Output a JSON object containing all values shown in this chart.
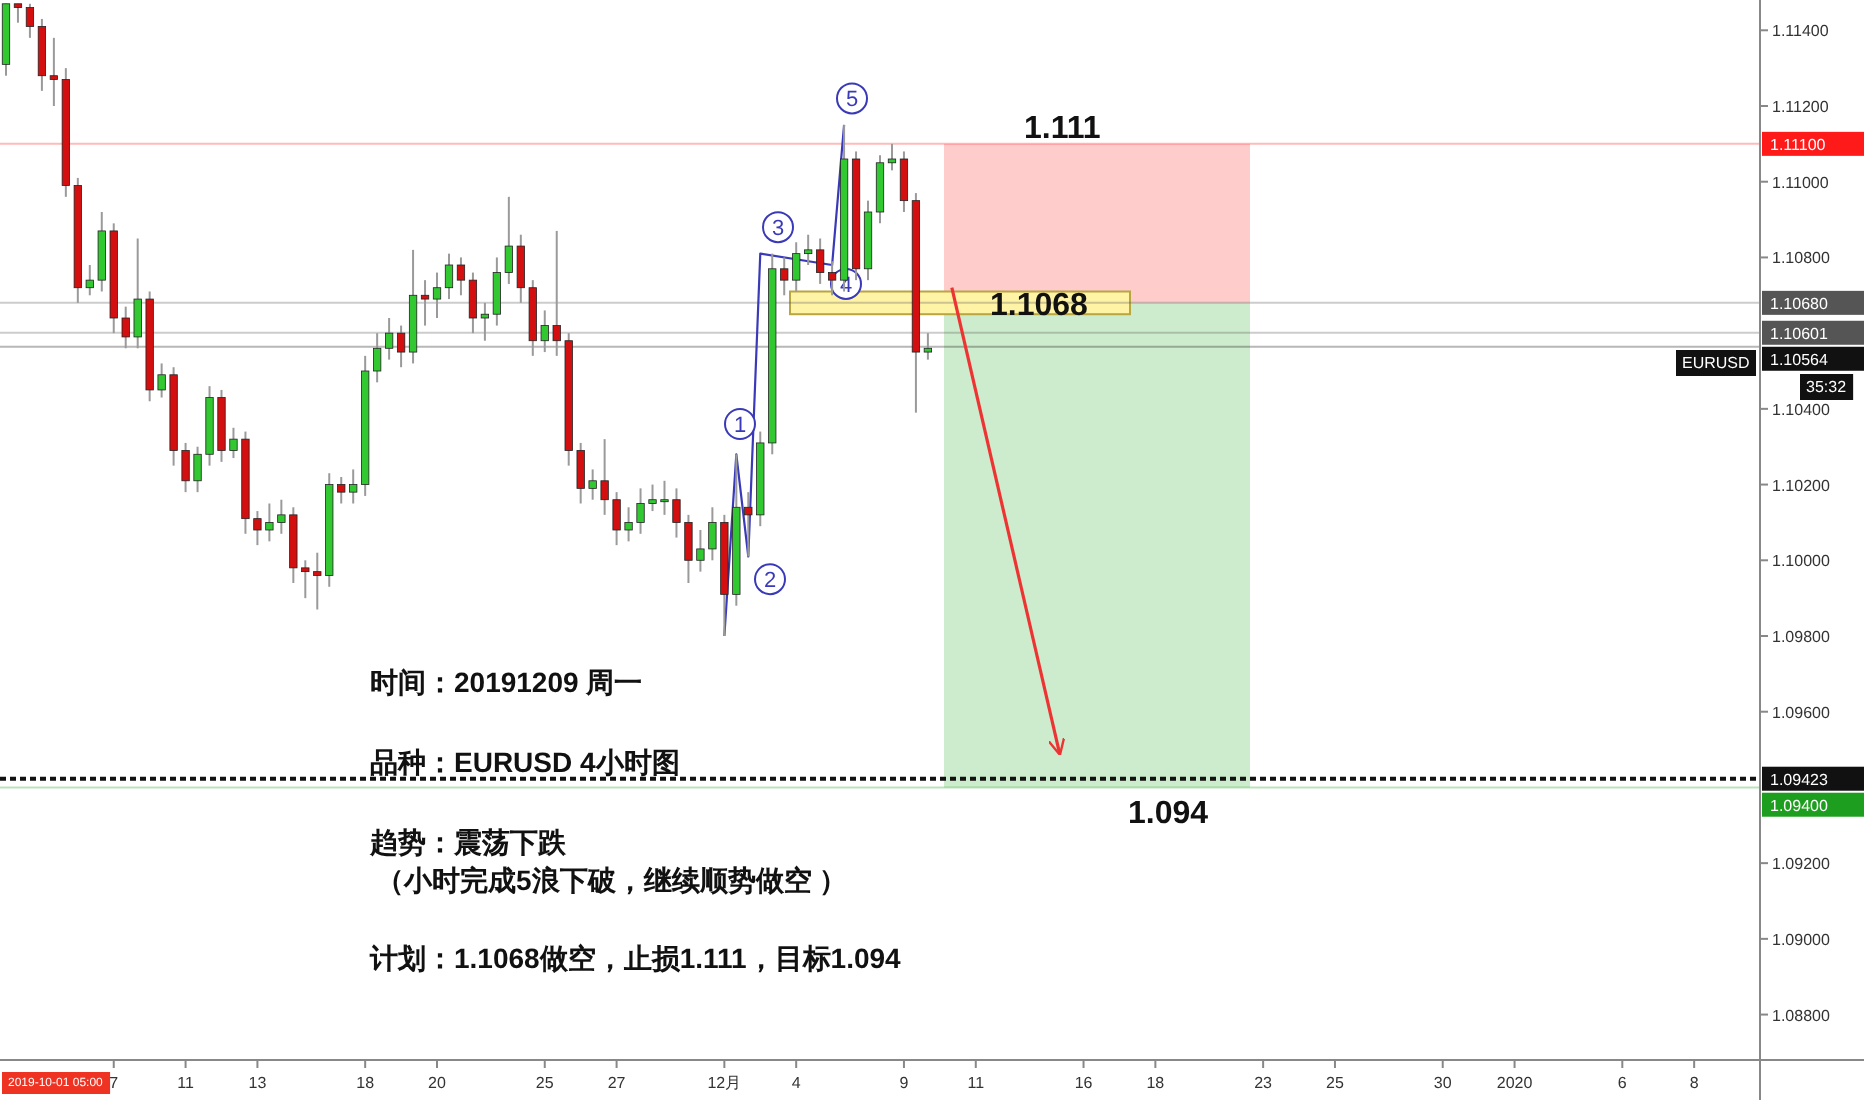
{
  "chart_data": {
    "type": "candlestick",
    "categories": [
      null,
      null,
      null,
      null,
      null,
      null,
      null,
      null,
      null,
      "7",
      null,
      null,
      null,
      null,
      null,
      "11",
      null,
      null,
      null,
      null,
      null,
      "13",
      null,
      null,
      null,
      null,
      null,
      null,
      null,
      null,
      "18",
      null,
      null,
      null,
      null,
      null,
      "20",
      null,
      null,
      null,
      null,
      null,
      null,
      null,
      null,
      "25",
      null,
      null,
      null,
      null,
      null,
      "27",
      null,
      null,
      null,
      null,
      null,
      null,
      null,
      null,
      "12月",
      null,
      null,
      null,
      null,
      null,
      "4",
      null,
      null,
      null,
      null,
      null,
      null,
      null,
      null,
      "9",
      null,
      null,
      null,
      null,
      null,
      "11",
      null,
      null,
      null,
      null,
      null,
      null,
      null,
      null,
      "16",
      null,
      null,
      null,
      null,
      null,
      "18",
      null,
      null,
      null,
      null,
      null,
      null,
      null,
      null,
      "23",
      null,
      null,
      null,
      null,
      null,
      "25",
      null,
      null,
      null,
      null,
      null,
      null,
      null,
      null,
      "30",
      null,
      null,
      null,
      null,
      null,
      "2020",
      null,
      null,
      null,
      null,
      null,
      null,
      null,
      null,
      "6",
      null,
      null,
      null,
      null,
      null,
      "8",
      null,
      null,
      null,
      null,
      null
    ],
    "ohlc": [
      [
        1.1131,
        1.1147,
        1.1128,
        1.1147
      ],
      [
        1.1147,
        1.1147,
        1.1142,
        1.1146
      ],
      [
        1.1146,
        1.1147,
        1.1138,
        1.1141
      ],
      [
        1.1141,
        1.1143,
        1.1124,
        1.1128
      ],
      [
        1.1128,
        1.1138,
        1.112,
        1.1127
      ],
      [
        1.1127,
        1.113,
        1.1096,
        1.1099
      ],
      [
        1.1099,
        1.1101,
        1.1068,
        1.1072
      ],
      [
        1.1072,
        1.1078,
        1.107,
        1.1074
      ],
      [
        1.1074,
        1.1092,
        1.1071,
        1.1087
      ],
      [
        1.1087,
        1.1089,
        1.106,
        1.1064
      ],
      [
        1.1064,
        1.1067,
        1.1056,
        1.1059
      ],
      [
        1.1059,
        1.1085,
        1.1056,
        1.1069
      ],
      [
        1.1069,
        1.1071,
        1.1042,
        1.1045
      ],
      [
        1.1045,
        1.1052,
        1.1043,
        1.1049
      ],
      [
        1.1049,
        1.1051,
        1.1025,
        1.1029
      ],
      [
        1.1029,
        1.1031,
        1.1018,
        1.1021
      ],
      [
        1.1021,
        1.103,
        1.1018,
        1.1028
      ],
      [
        1.1028,
        1.1046,
        1.1025,
        1.1043
      ],
      [
        1.1043,
        1.1045,
        1.1026,
        1.1029
      ],
      [
        1.1029,
        1.1035,
        1.1027,
        1.1032
      ],
      [
        1.1032,
        1.1034,
        1.1007,
        1.1011
      ],
      [
        1.1011,
        1.1013,
        1.1004,
        1.1008
      ],
      [
        1.1008,
        1.1015,
        1.1005,
        1.101
      ],
      [
        1.101,
        1.1016,
        1.1007,
        1.1012
      ],
      [
        1.1012,
        1.1014,
        1.0994,
        1.0998
      ],
      [
        1.0998,
        1.1,
        1.099,
        1.0997
      ],
      [
        1.0997,
        1.1002,
        1.0987,
        1.0996
      ],
      [
        1.0996,
        1.1023,
        1.0993,
        1.102
      ],
      [
        1.102,
        1.1022,
        1.1015,
        1.1018
      ],
      [
        1.1018,
        1.1024,
        1.1015,
        1.102
      ],
      [
        1.102,
        1.1054,
        1.1017,
        1.105
      ],
      [
        1.105,
        1.106,
        1.1047,
        1.1056
      ],
      [
        1.1056,
        1.1064,
        1.1053,
        1.106
      ],
      [
        1.106,
        1.1062,
        1.1051,
        1.1055
      ],
      [
        1.1055,
        1.1082,
        1.1052,
        1.107
      ],
      [
        1.107,
        1.1074,
        1.1062,
        1.1069
      ],
      [
        1.1069,
        1.1076,
        1.1064,
        1.1072
      ],
      [
        1.1072,
        1.1081,
        1.1069,
        1.1078
      ],
      [
        1.1078,
        1.108,
        1.107,
        1.1074
      ],
      [
        1.1074,
        1.1076,
        1.106,
        1.1064
      ],
      [
        1.1064,
        1.1068,
        1.1058,
        1.1065
      ],
      [
        1.1065,
        1.108,
        1.1062,
        1.1076
      ],
      [
        1.1076,
        1.1096,
        1.1073,
        1.1083
      ],
      [
        1.1083,
        1.1086,
        1.1068,
        1.1072
      ],
      [
        1.1072,
        1.1074,
        1.1054,
        1.1058
      ],
      [
        1.1058,
        1.1066,
        1.1055,
        1.1062
      ],
      [
        1.1062,
        1.1087,
        1.1054,
        1.1058
      ],
      [
        1.1058,
        1.106,
        1.1025,
        1.1029
      ],
      [
        1.1029,
        1.1031,
        1.1015,
        1.1019
      ],
      [
        1.1019,
        1.1024,
        1.1016,
        1.1021
      ],
      [
        1.1021,
        1.1032,
        1.1012,
        1.1016
      ],
      [
        1.1016,
        1.1018,
        1.1004,
        1.1008
      ],
      [
        1.1008,
        1.1014,
        1.1005,
        1.101
      ],
      [
        1.101,
        1.1019,
        1.1007,
        1.1015
      ],
      [
        1.1015,
        1.102,
        1.1013,
        1.1016
      ],
      [
        1.1016,
        1.1021,
        1.1012,
        1.1016
      ],
      [
        1.1016,
        1.1019,
        1.1006,
        1.101
      ],
      [
        1.101,
        1.1012,
        1.0994,
        1.1
      ],
      [
        1.1,
        1.1008,
        1.0997,
        1.1003
      ],
      [
        1.1003,
        1.1014,
        1.1,
        1.101
      ],
      [
        1.101,
        1.1012,
        1.098,
        1.0991
      ],
      [
        1.0991,
        1.1028,
        1.0988,
        1.1014
      ],
      [
        1.1014,
        1.1018,
        1.1001,
        1.1012
      ],
      [
        1.1012,
        1.1034,
        1.1009,
        1.1031
      ],
      [
        1.1031,
        1.1081,
        1.1028,
        1.1077
      ],
      [
        1.1077,
        1.108,
        1.107,
        1.1074
      ],
      [
        1.1074,
        1.1084,
        1.1071,
        1.1081
      ],
      [
        1.1081,
        1.1086,
        1.1078,
        1.1082
      ],
      [
        1.1082,
        1.1085,
        1.1073,
        1.1076
      ],
      [
        1.1076,
        1.1079,
        1.107,
        1.1074
      ],
      [
        1.1074,
        1.1115,
        1.1071,
        1.1106
      ],
      [
        1.1106,
        1.1108,
        1.1074,
        1.1077
      ],
      [
        1.1077,
        1.1095,
        1.1074,
        1.1092
      ],
      [
        1.1092,
        1.1107,
        1.1089,
        1.1105
      ],
      [
        1.1105,
        1.111,
        1.1103,
        1.1106
      ],
      [
        1.1106,
        1.1108,
        1.1092,
        1.1095
      ],
      [
        1.1095,
        1.1097,
        1.1039,
        1.1055
      ],
      [
        1.1055,
        1.106,
        1.1053,
        1.1056
      ],
      null,
      null,
      null,
      null,
      null,
      null,
      null,
      null,
      null,
      null,
      null,
      null,
      null,
      null,
      null,
      null,
      null,
      null,
      null,
      null,
      null,
      null,
      null,
      null,
      null,
      null,
      null,
      null,
      null,
      null,
      null,
      null,
      null,
      null,
      null,
      null,
      null,
      null,
      null,
      null,
      null,
      null,
      null,
      null,
      null,
      null,
      null,
      null,
      null,
      null,
      null,
      null,
      null,
      null,
      null,
      null,
      null,
      null,
      null,
      null,
      null,
      null,
      null,
      null,
      null,
      null,
      null,
      null,
      null
    ],
    "series": [
      {
        "type": "line",
        "color": "#3a3ab8",
        "values": [
          null,
          null,
          null,
          null,
          null,
          null,
          null,
          null,
          null,
          null,
          null,
          null,
          null,
          null,
          null,
          null,
          null,
          null,
          null,
          null,
          null,
          null,
          null,
          null,
          null,
          null,
          null,
          null,
          null,
          null,
          null,
          null,
          null,
          null,
          null,
          null,
          null,
          null,
          null,
          null,
          null,
          null,
          null,
          null,
          null,
          null,
          null,
          null,
          null,
          null,
          null,
          null,
          null,
          null,
          null,
          null,
          null,
          null,
          null,
          null,
          1.098,
          1.1028,
          1.1001,
          1.1081,
          null,
          null,
          null,
          null,
          null,
          1.1078,
          1.1115,
          null,
          null,
          null,
          null,
          null,
          null,
          null,
          null,
          null,
          null,
          null,
          null,
          null,
          null,
          null,
          null,
          null,
          null,
          null,
          null,
          null,
          null,
          null,
          null,
          null,
          null,
          null,
          null,
          null,
          null,
          null,
          null,
          null,
          null,
          null,
          null,
          null,
          null,
          null,
          null,
          null,
          null,
          null,
          null,
          null,
          null,
          null,
          null,
          null,
          null,
          null,
          null,
          null,
          null,
          null,
          null,
          null,
          null,
          null,
          null,
          null,
          null,
          null,
          null,
          null,
          null,
          null,
          null,
          null,
          null,
          null,
          null,
          null,
          null,
          null,
          null
        ]
      },
      {
        "type": "line",
        "color": "#ee3333",
        "values": [
          null,
          null,
          null,
          null,
          null,
          null,
          null,
          null,
          null,
          null,
          null,
          null,
          null,
          null,
          null,
          null,
          null,
          null,
          null,
          null,
          null,
          null,
          null,
          null,
          null,
          null,
          null,
          null,
          null,
          null,
          null,
          null,
          null,
          null,
          null,
          null,
          null,
          null,
          null,
          null,
          null,
          null,
          null,
          null,
          null,
          null,
          null,
          null,
          null,
          null,
          null,
          null,
          null,
          null,
          null,
          null,
          null,
          null,
          null,
          null,
          null,
          null,
          null,
          null,
          null,
          null,
          null,
          null,
          null,
          null,
          null,
          null,
          null,
          null,
          null,
          null,
          null,
          null,
          null,
          1.1072,
          null,
          null,
          null,
          null,
          null,
          null,
          null,
          null,
          1.0949,
          null,
          null,
          null,
          null,
          null,
          null,
          null,
          null,
          null,
          null,
          null,
          null,
          null,
          null,
          null,
          null,
          null,
          null,
          null,
          null,
          null,
          null,
          null,
          null,
          null,
          null,
          null,
          null,
          null,
          null,
          null,
          null,
          null,
          null,
          null,
          null,
          null,
          null,
          null,
          null,
          null,
          null,
          null,
          null,
          null,
          null,
          null,
          null,
          null,
          null,
          null,
          null,
          null,
          null,
          null,
          null,
          null,
          null
        ]
      }
    ],
    "ylim": [
      1.0868,
      1.1148
    ],
    "yticks": [
      {
        "value": 1.088,
        "label": "1.08800"
      },
      {
        "value": 1.09,
        "label": "1.09000"
      },
      {
        "value": 1.092,
        "label": "1.09200"
      },
      {
        "value": 1.096,
        "label": "1.09600"
      },
      {
        "value": 1.098,
        "label": "1.09800"
      },
      {
        "value": 1.1,
        "label": "1.10000"
      },
      {
        "value": 1.102,
        "label": "1.10200"
      },
      {
        "value": 1.104,
        "label": "1.10400"
      },
      {
        "value": 1.108,
        "label": "1.10800"
      },
      {
        "value": 1.11,
        "label": "1.11000"
      },
      {
        "value": 1.112,
        "label": "1.11200"
      },
      {
        "value": 1.114,
        "label": "1.11400"
      }
    ],
    "bands": [
      {
        "axis": "y",
        "from": 1.1068,
        "to": 1.111,
        "label": "1.111",
        "color": "#ffcccc"
      },
      {
        "axis": "y",
        "from": 1.094,
        "to": 1.1068,
        "label": "1.094",
        "color": "#cdeccd"
      },
      {
        "axis": "y",
        "from": 1.1065,
        "to": 1.1071,
        "label": "1.1068",
        "color": "#fff3a6"
      }
    ],
    "ref_lines": [
      {
        "axis": "y",
        "value": 1.111,
        "label": "1.11100",
        "color": "#ff1a1a"
      },
      {
        "axis": "y",
        "value": 1.1068,
        "label": "1.10680",
        "color": "#555555"
      },
      {
        "axis": "y",
        "value": 1.10601,
        "label": "1.10601",
        "color": "#555555"
      },
      {
        "axis": "y",
        "value": 1.10564,
        "label": "1.10564",
        "color": "#111111"
      },
      {
        "axis": "y",
        "value": 1.09423,
        "label": "1.09423",
        "color": "#111111",
        "line_style": "dotted"
      },
      {
        "axis": "y",
        "value": 1.094,
        "label": "1.09400",
        "color": "#1e9e1e"
      }
    ],
    "annotations": [
      "时间：20191209 周一",
      "品种：EURUSD   4小时图",
      "趋势：震荡下跌",
      "（小时完成5浪下破，继续顺势做空 ）",
      "计划：1.1068做空，止损1.111，目标1.094",
      "2019-10-01   05:00",
      "EURUSD",
      "35:32",
      {
        "text": "1",
        "y": 1.1036
      },
      {
        "text": "2",
        "y": 1.0995
      },
      {
        "text": "3",
        "y": 1.1088
      },
      {
        "text": "4",
        "y": 1.1073
      },
      {
        "text": "5",
        "y": 1.1122
      }
    ],
    "grid": false
  }
}
